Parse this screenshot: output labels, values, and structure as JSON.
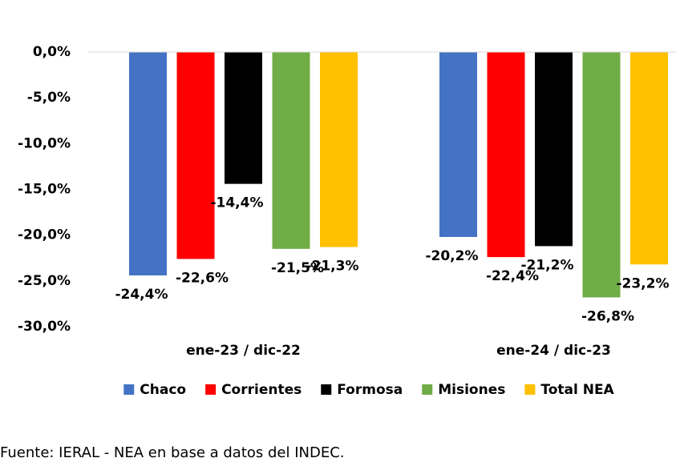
{
  "chart_data": {
    "type": "bar",
    "categories": [
      "ene-23 / dic-22",
      "ene-24 / dic-23"
    ],
    "series": [
      {
        "name": "Chaco",
        "color": "#4472c4",
        "values": [
          -24.4,
          -20.2
        ],
        "value_labels": [
          "-24,4%",
          "-20,2%"
        ]
      },
      {
        "name": "Corrientes",
        "color": "#ff0000",
        "values": [
          -22.6,
          -22.4
        ],
        "value_labels": [
          "-22,6%",
          "-22,4%"
        ]
      },
      {
        "name": "Formosa",
        "color": "#000000",
        "values": [
          -14.4,
          -21.2
        ],
        "value_labels": [
          "-14,4%",
          "-21,2%"
        ]
      },
      {
        "name": "Misiones",
        "color": "#70ad47",
        "values": [
          -21.5,
          -26.8
        ],
        "value_labels": [
          "-21,5%",
          "-26,8%"
        ]
      },
      {
        "name": "Total NEA",
        "color": "#ffc000",
        "values": [
          -21.3,
          -23.2
        ],
        "value_labels": [
          "-21,3%",
          "-23,2%"
        ]
      }
    ],
    "ylim": [
      -30,
      0
    ],
    "yticks": [
      {
        "value": 0,
        "label": "0,0%"
      },
      {
        "value": -5,
        "label": "-5,0%"
      },
      {
        "value": -10,
        "label": "-10,0%"
      },
      {
        "value": -15,
        "label": "-15,0%"
      },
      {
        "value": -20,
        "label": "-20,0%"
      },
      {
        "value": -25,
        "label": "-25,0%"
      },
      {
        "value": -30,
        "label": "-30,0%"
      }
    ],
    "legend": "bottom",
    "source": "Fuente: IERAL - NEA en base a datos del INDEC."
  }
}
